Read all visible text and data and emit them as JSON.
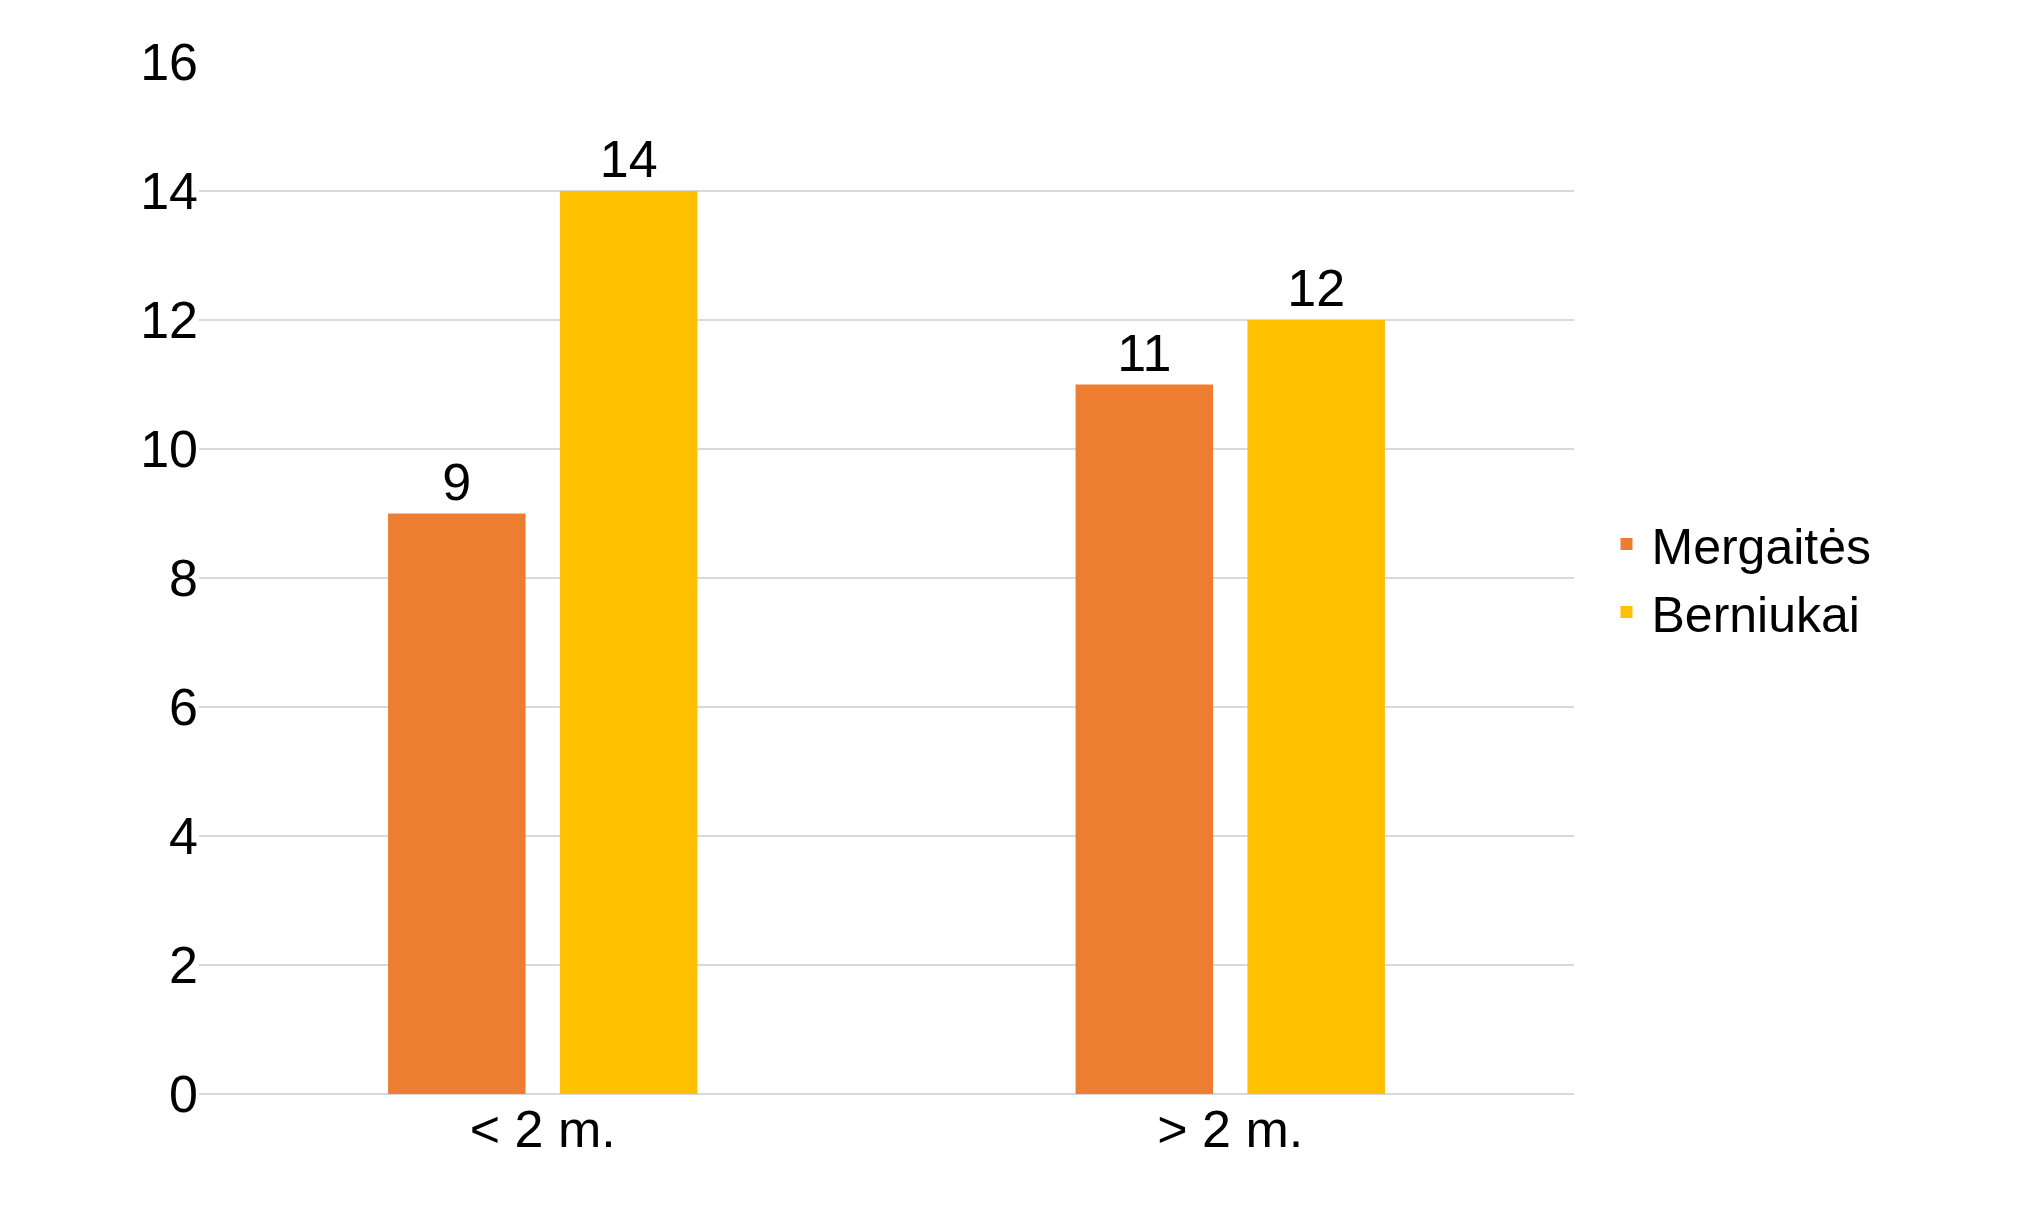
{
  "chart_data": {
    "type": "bar",
    "categories": [
      "< 2 m.",
      "> 2 m."
    ],
    "series": [
      {
        "name": "Mergaitės",
        "color": "#ed7d31",
        "values": [
          9,
          11
        ]
      },
      {
        "name": "Berniukai",
        "color": "#ffc000",
        "values": [
          14,
          12
        ]
      }
    ],
    "ylim": [
      0,
      16
    ],
    "yticks": [
      0,
      2,
      4,
      6,
      8,
      10,
      12,
      14,
      16
    ],
    "grid": "y",
    "legend": "right",
    "data_labels": true
  }
}
